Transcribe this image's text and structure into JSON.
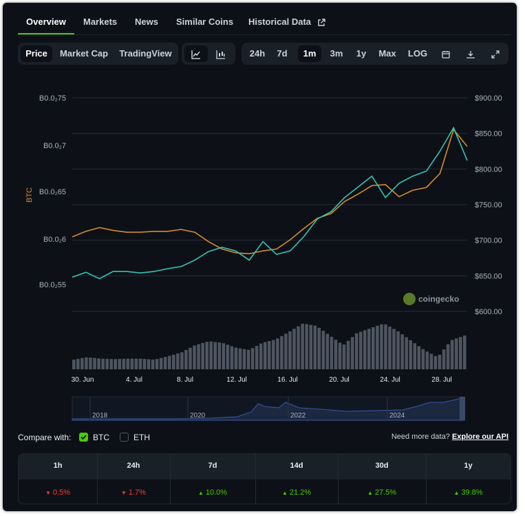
{
  "tabs": [
    {
      "label": "Overview",
      "active": true
    },
    {
      "label": "Markets"
    },
    {
      "label": "News"
    },
    {
      "label": "Similar Coins"
    },
    {
      "label": "Historical Data"
    }
  ],
  "view_modes": [
    "Price",
    "Market Cap",
    "TradingView"
  ],
  "chart_styles": [
    "line-chart-icon",
    "candlestick-icon"
  ],
  "ranges": [
    "24h",
    "7d",
    "1m",
    "3m",
    "1y",
    "Max",
    "LOG"
  ],
  "active_range": "1m",
  "tool_icons": [
    "calendar-icon",
    "download-icon",
    "expand-icon"
  ],
  "colors": {
    "btc_line": "#d58b2e",
    "price_line": "#36c5b8",
    "accent": "#4bcc00",
    "up": "#4bcc00",
    "down": "#ff3a33",
    "volume": "#4e5561"
  },
  "chart_data": {
    "type": "line",
    "x_ticks": [
      "30. Jun",
      "4. Jul",
      "8. Jul",
      "12. Jul",
      "16. Jul",
      "20. Jul",
      "24. Jul",
      "28. Jul"
    ],
    "left_axis_ticks": [
      "B0.0₂75",
      "B0.0₂7",
      "B0.0₂65",
      "B0.0₂6",
      "B0.0₂55"
    ],
    "left_axis_label": "BTC",
    "right_axis_ticks": [
      "$900.00",
      "$850.00",
      "$800.00",
      "$750.00",
      "$700.00",
      "$650.00",
      "$600.00"
    ],
    "right_ylim": [
      600,
      900
    ],
    "series": [
      {
        "name": "BTC",
        "color": "#d58b2e",
        "x": [
          0,
          1,
          2,
          3,
          4,
          5,
          6,
          7,
          8,
          9,
          10,
          11,
          12,
          13,
          14,
          15,
          16,
          17,
          18,
          19,
          20,
          21,
          22,
          23,
          24,
          25,
          26,
          27,
          28,
          29
        ],
        "values": [
          0.00601,
          0.00607,
          0.00611,
          0.00608,
          0.00606,
          0.00606,
          0.00607,
          0.00607,
          0.00609,
          0.00606,
          0.00596,
          0.00588,
          0.00584,
          0.00583,
          0.00586,
          0.00588,
          0.00598,
          0.0061,
          0.00621,
          0.00626,
          0.00639,
          0.00647,
          0.00656,
          0.00657,
          0.00644,
          0.00651,
          0.00654,
          0.00669,
          0.00716,
          0.00698
        ]
      },
      {
        "name": "USD",
        "color": "#36c5b8",
        "x": [
          0,
          1,
          2,
          3,
          4,
          5,
          6,
          7,
          8,
          9,
          10,
          11,
          12,
          13,
          14,
          15,
          16,
          17,
          18,
          19,
          20,
          21,
          22,
          23,
          24,
          25,
          26,
          27,
          28,
          29
        ],
        "values": [
          648,
          655,
          646,
          656,
          656,
          654,
          656,
          660,
          663,
          672,
          684,
          690,
          685,
          672,
          698,
          680,
          685,
          705,
          730,
          740,
          760,
          775,
          790,
          760,
          780,
          790,
          797,
          825,
          858,
          812
        ]
      }
    ],
    "volume": [
      0.2,
      0.25,
      0.22,
      0.21,
      0.22,
      0.22,
      0.2,
      0.27,
      0.35,
      0.5,
      0.58,
      0.55,
      0.45,
      0.4,
      0.55,
      0.62,
      0.78,
      0.95,
      0.9,
      0.7,
      0.5,
      0.75,
      0.85,
      0.95,
      0.8,
      0.6,
      0.4,
      0.25,
      0.6,
      0.7
    ],
    "navigator_ticks": [
      "2018",
      "2020",
      "2022",
      "2024"
    ]
  },
  "watermark": "coingecko",
  "compare_label": "Compare with:",
  "compare_options": [
    {
      "label": "BTC",
      "checked": true
    },
    {
      "label": "ETH",
      "checked": false
    }
  ],
  "api_prompt": "Need more data?",
  "api_link": "Explore our API",
  "perf_table": {
    "headers": [
      "1h",
      "24h",
      "7d",
      "14d",
      "30d",
      "1y"
    ],
    "values": [
      {
        "text": "0.5%",
        "dir": "down"
      },
      {
        "text": "1.7%",
        "dir": "down"
      },
      {
        "text": "10.0%",
        "dir": "up"
      },
      {
        "text": "21.2%",
        "dir": "up"
      },
      {
        "text": "27.5%",
        "dir": "up"
      },
      {
        "text": "39.8%",
        "dir": "up"
      }
    ]
  }
}
